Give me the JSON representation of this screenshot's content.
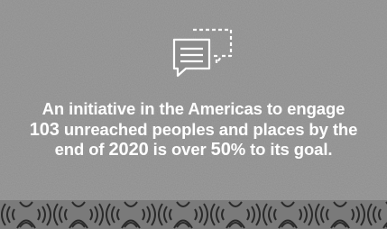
{
  "message": {
    "segments": [
      "An initiative in the Americas to engage",
      "103",
      "unreached peoples and places by the",
      "end of",
      "2020",
      "is over",
      "50",
      "% to its goal."
    ]
  }
}
